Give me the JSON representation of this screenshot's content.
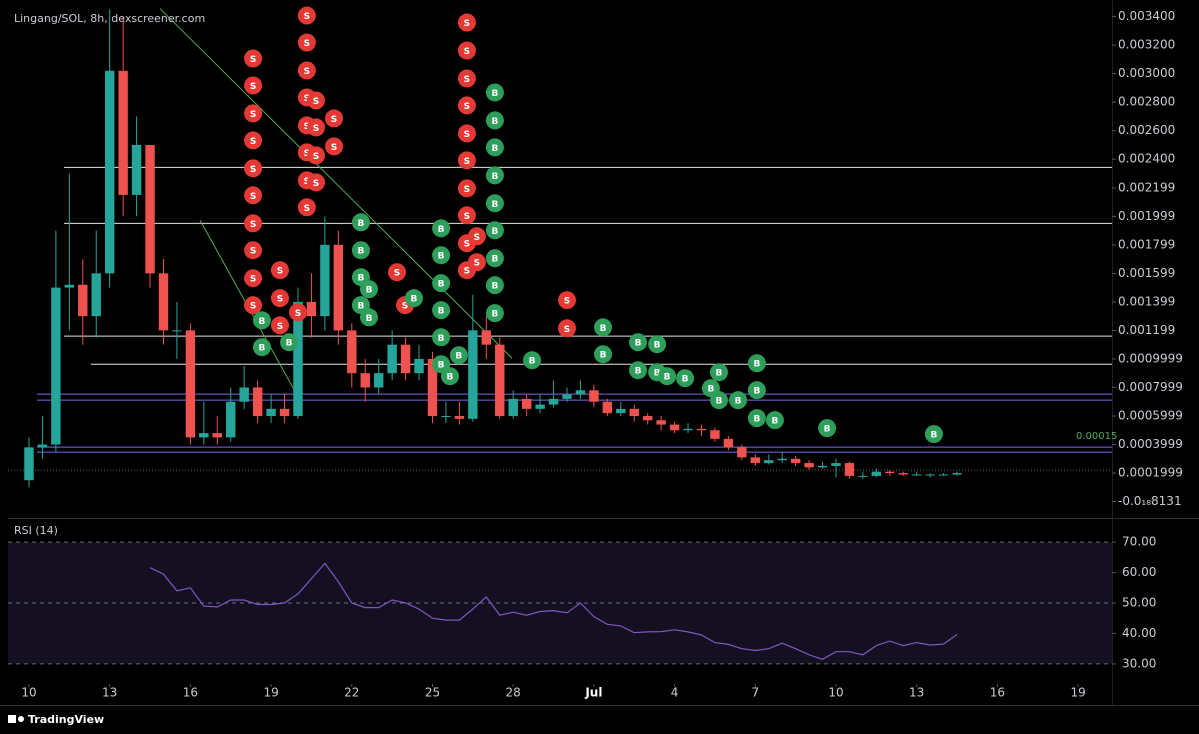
{
  "chart_data": [
    {
      "type": "candlestick",
      "title": "Lingang/SOL, 8h, dexscreener.com",
      "up_color": "#26a69a",
      "down_color": "#ef5350",
      "x": [
        0,
        0.5,
        1,
        1.5,
        2,
        2.5,
        3,
        3.5,
        4,
        4.5,
        5,
        5.5,
        6,
        6.5,
        7,
        7.5,
        8,
        8.5,
        9,
        9.5,
        10,
        10.5,
        11,
        11.5,
        12,
        12.5,
        13,
        13.5,
        14,
        14.5,
        15,
        15.5,
        16,
        16.5,
        17,
        17.5,
        18,
        18.5,
        19,
        19.5,
        20,
        20.5,
        21,
        21.5,
        22,
        22.5,
        23,
        23.5,
        24,
        24.5,
        25,
        25.5,
        26,
        26.5,
        27,
        27.5,
        28,
        28.5,
        29,
        29.5,
        30,
        30.5,
        31,
        31.5,
        32,
        32.5,
        33,
        33.5,
        34,
        34.5
      ],
      "open": [
        0.00015,
        0.00038,
        0.0004,
        0.0015,
        0.00152,
        0.0013,
        0.0016,
        0.00302,
        0.00215,
        0.0025,
        0.0016,
        0.0012,
        0.0012,
        0.00045,
        0.00048,
        0.00045,
        0.0007,
        0.0008,
        0.0006,
        0.00065,
        0.0006,
        0.0014,
        0.0013,
        0.0018,
        0.0012,
        0.0009,
        0.0008,
        0.0009,
        0.0011,
        0.0009,
        0.001,
        0.0006,
        0.0006,
        0.00058,
        0.0012,
        0.0011,
        0.0006,
        0.00072,
        0.00065,
        0.00068,
        0.00072,
        0.00075,
        0.00078,
        0.0007,
        0.00062,
        0.00065,
        0.0006,
        0.00057,
        0.00054,
        0.0005,
        0.00051,
        0.0005,
        0.00044,
        0.00038,
        0.00031,
        0.00027,
        0.00029,
        0.0003,
        0.00027,
        0.00024,
        0.00025,
        0.00027,
        0.00018,
        0.00018,
        0.00021,
        0.0002,
        0.00019,
        0.00019,
        0.00019,
        0.00019
      ],
      "high": [
        0.00045,
        0.0006,
        0.0019,
        0.0023,
        0.0017,
        0.0019,
        0.00345,
        0.0034,
        0.0027,
        0.0025,
        0.0017,
        0.0014,
        0.00125,
        0.0007,
        0.0006,
        0.0008,
        0.00095,
        0.00085,
        0.00075,
        0.00075,
        0.0015,
        0.0016,
        0.002,
        0.0019,
        0.00125,
        0.001,
        0.001,
        0.0012,
        0.00115,
        0.0011,
        0.00105,
        0.0007,
        0.0007,
        0.00145,
        0.0013,
        0.00115,
        0.00078,
        0.00075,
        0.00075,
        0.00085,
        0.0008,
        0.00085,
        0.00082,
        0.00072,
        0.0007,
        0.00068,
        0.00062,
        0.0006,
        0.00056,
        0.00055,
        0.00054,
        0.00052,
        0.00046,
        0.0004,
        0.00033,
        0.00033,
        0.00035,
        0.00032,
        0.00029,
        0.00028,
        0.0003,
        0.00028,
        0.00021,
        0.00023,
        0.00022,
        0.00021,
        0.00021,
        0.0002,
        0.0002,
        0.00021
      ],
      "low": [
        0.0001,
        0.0003,
        0.00035,
        0.0012,
        0.0011,
        0.00115,
        0.0015,
        0.002,
        0.002,
        0.0015,
        0.0011,
        0.001,
        0.0004,
        0.0004,
        0.0004,
        0.00042,
        0.00065,
        0.00055,
        0.00055,
        0.00055,
        0.00058,
        0.00115,
        0.0012,
        0.0011,
        0.0008,
        0.0007,
        0.00075,
        0.00085,
        0.00085,
        0.00085,
        0.00055,
        0.00055,
        0.00054,
        0.00056,
        0.001,
        0.00058,
        0.00058,
        0.0006,
        0.00062,
        0.00066,
        0.0007,
        0.00072,
        0.00066,
        0.0006,
        0.0006,
        0.00056,
        0.00054,
        0.0005,
        0.00048,
        0.00048,
        0.00046,
        0.00042,
        0.00036,
        0.00029,
        0.00025,
        0.00026,
        0.00027,
        0.00025,
        0.00022,
        0.00023,
        0.00017,
        0.00016,
        0.00016,
        0.00017,
        0.00018,
        0.00018,
        0.00018,
        0.00017,
        0.00018,
        0.00018
      ],
      "close": [
        0.00038,
        0.0004,
        0.0015,
        0.00152,
        0.0013,
        0.0016,
        0.00302,
        0.00215,
        0.0025,
        0.0016,
        0.0012,
        0.0012,
        0.00045,
        0.00048,
        0.00045,
        0.0007,
        0.0008,
        0.0006,
        0.00065,
        0.0006,
        0.0014,
        0.0013,
        0.0018,
        0.0012,
        0.0009,
        0.0008,
        0.0009,
        0.0011,
        0.0009,
        0.001,
        0.0006,
        0.0006,
        0.00058,
        0.0012,
        0.0011,
        0.0006,
        0.00072,
        0.00065,
        0.00068,
        0.00072,
        0.00075,
        0.00078,
        0.0007,
        0.00062,
        0.00065,
        0.0006,
        0.00057,
        0.00054,
        0.0005,
        0.00051,
        0.0005,
        0.00044,
        0.00038,
        0.00031,
        0.00027,
        0.00029,
        0.0003,
        0.00027,
        0.00024,
        0.00025,
        0.00027,
        0.00018,
        0.00018,
        0.00021,
        0.0002,
        0.00019,
        0.00019,
        0.00019,
        0.00019,
        0.0002
      ],
      "xlim": [
        -0.78,
        40.26
      ],
      "ylim": [
        -0.000115,
        0.00346
      ],
      "yticks": [
        {
          "value": 0.0034,
          "label": "0.003400"
        },
        {
          "value": 0.0032,
          "label": "0.003200"
        },
        {
          "value": 0.003,
          "label": "0.003000"
        },
        {
          "value": 0.0028,
          "label": "0.002800"
        },
        {
          "value": 0.0026,
          "label": "0.002600"
        },
        {
          "value": 0.0024,
          "label": "0.002400"
        },
        {
          "value": 0.002199,
          "label": "0.002199"
        },
        {
          "value": 0.001999,
          "label": "0.001999"
        },
        {
          "value": 0.001799,
          "label": "0.001799"
        },
        {
          "value": 0.001599,
          "label": "0.001599"
        },
        {
          "value": 0.001399,
          "label": "0.001399"
        },
        {
          "value": 0.001199,
          "label": "0.001199"
        },
        {
          "value": 0.0009999,
          "label": "0.0009999"
        },
        {
          "value": 0.0007999,
          "label": "0.0007999"
        },
        {
          "value": 0.0005999,
          "label": "0.0005999"
        },
        {
          "value": 0.0003999,
          "label": "0.0003999"
        },
        {
          "value": 0.0001999,
          "label": "0.0001999"
        },
        {
          "value": -8.131e-19,
          "label": "-0.0₁₈8131"
        }
      ],
      "levels": [
        {
          "value": 0.002343,
          "start": 1.3,
          "color": "#e6e6e6"
        },
        {
          "value": 0.00195,
          "start": 1.3,
          "color": "#e6e6e6"
        },
        {
          "value": 0.00116,
          "start": 1.3,
          "color": "#e6e6e6"
        },
        {
          "value": 0.000963,
          "start": 2.3,
          "color": "#e6e6e6"
        },
        {
          "value": 0.000753,
          "start": 0.3,
          "color": "#7b68ee"
        },
        {
          "value": 0.000711,
          "start": 0.3,
          "color": "#7b68ee"
        },
        {
          "value": 0.000382,
          "start": 0.3,
          "color": "#7b68ee"
        },
        {
          "value": 0.000347,
          "start": 0.3,
          "color": "#7b68ee"
        }
      ],
      "annotation": {
        "text": "0.00015",
        "color": "#4caf50"
      },
      "trend_lines": [
        {
          "x": [
            4.87,
            17.96
          ],
          "y": [
            0.003456,
            0.001005
          ],
          "color": "#4caf50"
        },
        {
          "x": [
            6.36,
            10.07
          ],
          "y": [
            0.001972,
            0.000711
          ],
          "color": "#4caf50"
        }
      ],
      "trade_markers": [
        {
          "label": "S",
          "color": "#e53935",
          "x": [
            8.33,
            8.33,
            8.33,
            8.33,
            8.33,
            8.33,
            8.33,
            8.33,
            8.33,
            8.33,
            10.33,
            10.33,
            10.33,
            10.33,
            10.33,
            10.33,
            10.33,
            10.33,
            10.67,
            10.67,
            10.67,
            10.67,
            11.34,
            11.34,
            9.33,
            9.33,
            9.33,
            10.0,
            16.28,
            16.28,
            16.28,
            16.28,
            16.28,
            16.28,
            16.28,
            16.28,
            16.28,
            16.28,
            16.65,
            16.65,
            13.68,
            13.98,
            20.0,
            20.0
          ],
          "y": [
            0.003106,
            0.002917,
            0.002721,
            0.002532,
            0.002336,
            0.002147,
            0.001951,
            0.001762,
            0.001566,
            0.001377,
            0.003407,
            0.003218,
            0.003022,
            0.002833,
            0.002637,
            0.002448,
            0.002252,
            0.002063,
            0.002812,
            0.002623,
            0.002427,
            0.002238,
            0.002686,
            0.00249,
            0.001622,
            0.001426,
            0.001236,
            0.001327,
            0.003358,
            0.003162,
            0.002966,
            0.002777,
            0.002581,
            0.002392,
            0.002196,
            0.002007,
            0.001811,
            0.001622,
            0.00186,
            0.001678,
            0.001608,
            0.001377,
            0.001412,
            0.001215
          ]
        },
        {
          "label": "B",
          "color": "#2e9e5b",
          "x": [
            17.32,
            17.32,
            17.32,
            17.32,
            17.32,
            17.32,
            17.32,
            17.32,
            17.32,
            12.34,
            12.34,
            12.34,
            12.34,
            15.32,
            15.32,
            15.32,
            15.32,
            15.32,
            15.32,
            8.66,
            8.66,
            9.67,
            12.64,
            12.64,
            14.31,
            15.98,
            15.65,
            18.7,
            21.34,
            21.34,
            22.64,
            22.64,
            23.35,
            23.35,
            23.72,
            24.39,
            25.65,
            25.65,
            25.35,
            26.36,
            27.06,
            27.06,
            27.06,
            27.73,
            29.67,
            33.64
          ],
          "y": [
            0.002868,
            0.002672,
            0.002483,
            0.002287,
            0.002091,
            0.001902,
            0.001706,
            0.001517,
            0.001321,
            0.001958,
            0.001762,
            0.001573,
            0.001377,
            0.001916,
            0.001727,
            0.001531,
            0.001342,
            0.001152,
            0.000963,
            0.001271,
            0.001082,
            0.001117,
            0.001489,
            0.001292,
            0.001426,
            0.001026,
            0.000879,
            0.000991,
            0.001222,
            0.001033,
            0.001117,
            0.000921,
            0.001103,
            0.000907,
            0.000879,
            0.000865,
            0.000907,
            0.000711,
            0.000795,
            0.000711,
            0.00097,
            0.000781,
            0.000585,
            0.000571,
            0.000515,
            0.000473
          ]
        }
      ]
    },
    {
      "type": "line",
      "title": "RSI (14)",
      "x": [
        4.5,
        5,
        5.5,
        6,
        6.5,
        7,
        7.5,
        8,
        8.5,
        9,
        9.5,
        10,
        10.5,
        11,
        11.5,
        12,
        12.5,
        13,
        13.5,
        14,
        14.5,
        15,
        15.5,
        16,
        16.5,
        17,
        17.5,
        18,
        18.5,
        19,
        19.5,
        20,
        20.5,
        21,
        21.5,
        22,
        22.5,
        23,
        23.5,
        24,
        24.5,
        25,
        25.5,
        26,
        26.5,
        27,
        27.5,
        28,
        28.5,
        29,
        29.5,
        30,
        30.5,
        31,
        31.5,
        32,
        32.5,
        33,
        33.5,
        34,
        34.5
      ],
      "values": [
        61.6,
        59.5,
        54,
        55,
        49,
        48.7,
        51,
        51,
        49.5,
        49.5,
        50,
        53,
        58,
        63,
        57,
        50,
        48.5,
        48.5,
        51,
        50,
        48,
        45,
        44.4,
        44.4,
        48,
        52,
        46,
        47,
        46,
        47.2,
        47.5,
        46.8,
        50,
        45.5,
        43,
        42.5,
        40.3,
        40.5,
        40.6,
        41.2,
        40.5,
        39.5,
        37,
        36.4,
        35,
        34.4,
        35,
        36.8,
        35,
        33,
        31.5,
        34,
        34,
        33,
        36,
        37.5,
        36,
        37,
        36.2,
        36.5,
        39.7
      ],
      "color": "#7e57c2",
      "band": [
        30,
        70
      ],
      "dashed": [
        70,
        50,
        30
      ],
      "xlim": [
        -0.78,
        40.26
      ],
      "ylim": [
        23.4,
        77.6
      ],
      "yticks": [
        {
          "value": 70,
          "label": "70.00"
        },
        {
          "value": 60,
          "label": "60.00"
        },
        {
          "value": 50,
          "label": "50.00"
        },
        {
          "value": 40,
          "label": "40.00"
        },
        {
          "value": 30,
          "label": "30.00"
        }
      ],
      "xticks": [
        {
          "value": 0,
          "label": "10"
        },
        {
          "value": 3,
          "label": "13"
        },
        {
          "value": 6,
          "label": "16"
        },
        {
          "value": 9,
          "label": "19"
        },
        {
          "value": 12,
          "label": "22"
        },
        {
          "value": 15,
          "label": "25"
        },
        {
          "value": 18,
          "label": "28"
        },
        {
          "value": 21,
          "label": "Jul"
        },
        {
          "value": 24,
          "label": "4"
        },
        {
          "value": 27,
          "label": "7"
        },
        {
          "value": 30,
          "label": "10"
        },
        {
          "value": 33,
          "label": "13"
        },
        {
          "value": 36,
          "label": "16"
        },
        {
          "value": 39,
          "label": "19"
        }
      ]
    }
  ],
  "footer": {
    "brand": "TradingView"
  }
}
